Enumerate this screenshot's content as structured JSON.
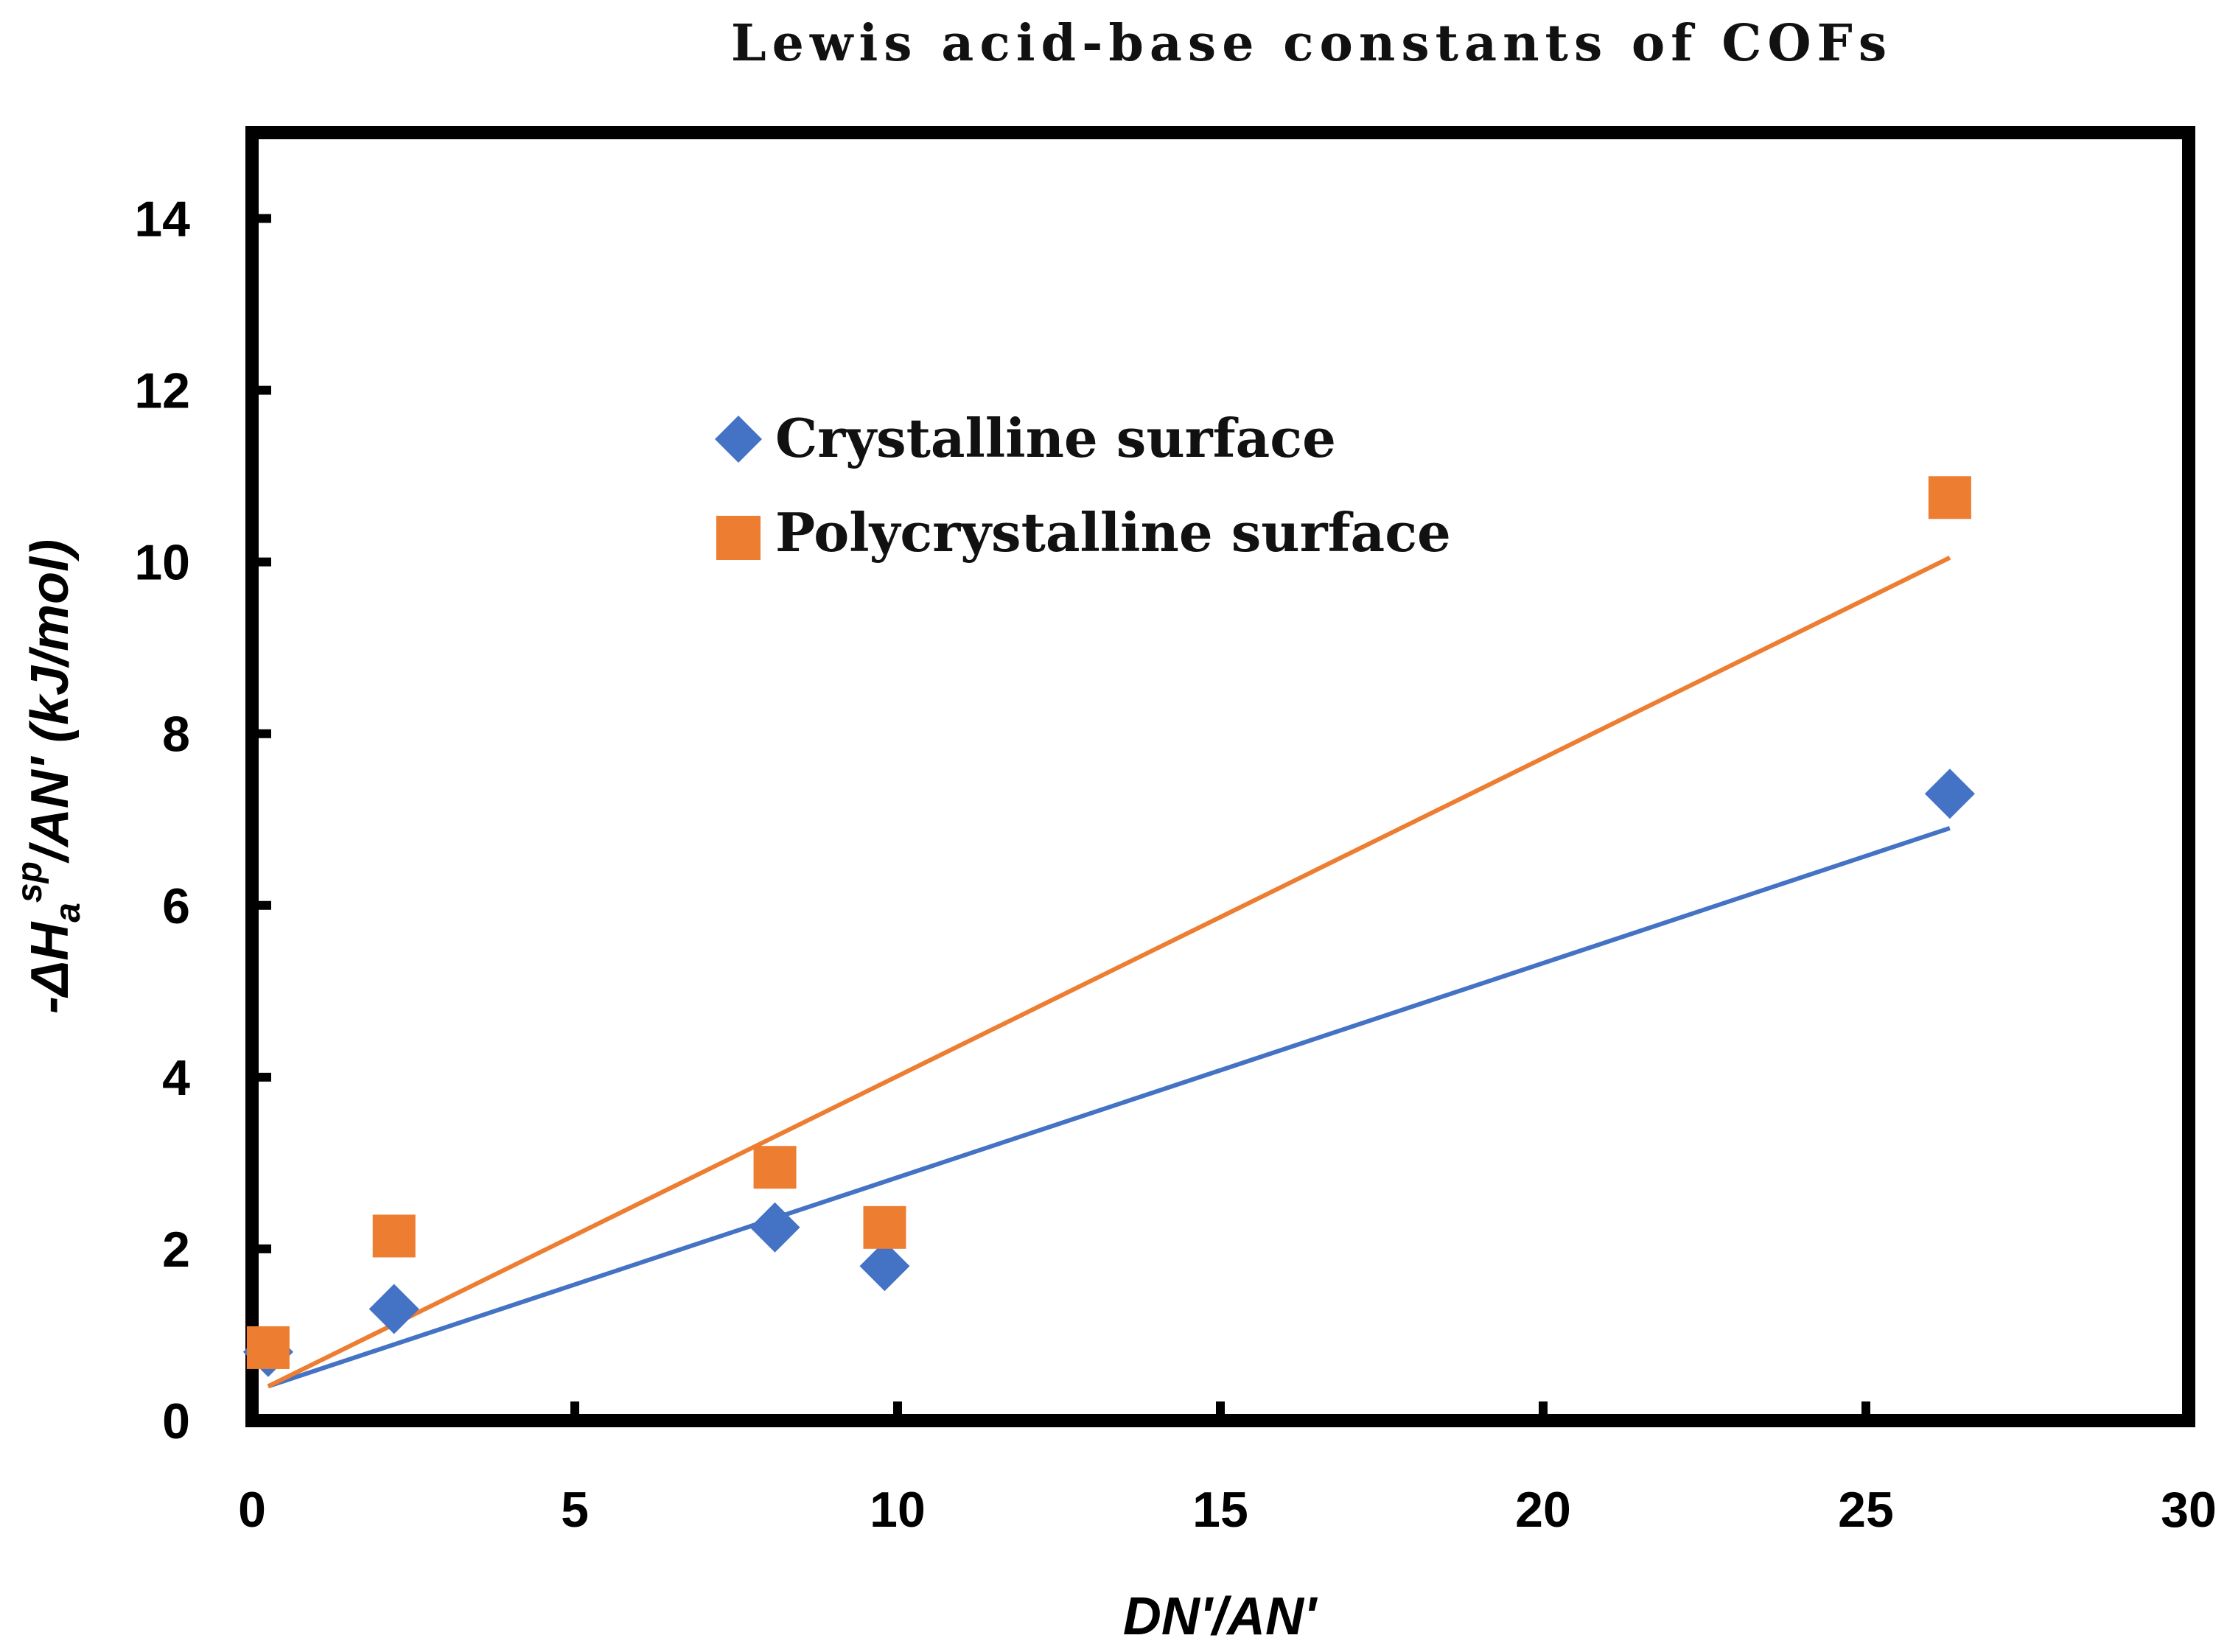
{
  "chart_data": {
    "type": "scatter",
    "title": "Lewis acid-base constants of COFs",
    "xlabel": "DN'/AN'",
    "ylabel_parts": {
      "pre": "-ΔH",
      "sub": "a",
      "sup": "sp",
      "post": "/AN' (kJ/mol)"
    },
    "xlim": [
      0,
      30
    ],
    "ylim": [
      0,
      15
    ],
    "xticks": [
      0,
      5,
      10,
      15,
      20,
      25,
      30
    ],
    "yticks": [
      0,
      2,
      4,
      6,
      8,
      10,
      12,
      14
    ],
    "xtick_labels": [
      "0",
      "5",
      "10",
      "15",
      "20",
      "25",
      "30"
    ],
    "ytick_labels": [
      "0",
      "2",
      "4",
      "6",
      "8",
      "10",
      "12",
      "14"
    ],
    "legend_position": "upper-left-center",
    "series": [
      {
        "name": "Crystalline surface",
        "marker": "diamond",
        "color": "#4472C4",
        "x": [
          0.25,
          2.2,
          8.1,
          9.8,
          26.3
        ],
        "y": [
          0.8,
          1.3,
          2.25,
          1.8,
          7.3
        ],
        "trendline": {
          "x": [
            0.25,
            26.3
          ],
          "y": [
            0.4,
            6.9
          ]
        }
      },
      {
        "name": "Polycrystalline surface",
        "marker": "square",
        "color": "#ED7D31",
        "x": [
          0.25,
          2.2,
          8.1,
          9.8,
          26.3
        ],
        "y": [
          0.85,
          2.15,
          2.95,
          2.25,
          10.75
        ],
        "trendline": {
          "x": [
            0.25,
            26.3
          ],
          "y": [
            0.4,
            10.05
          ]
        }
      }
    ]
  }
}
